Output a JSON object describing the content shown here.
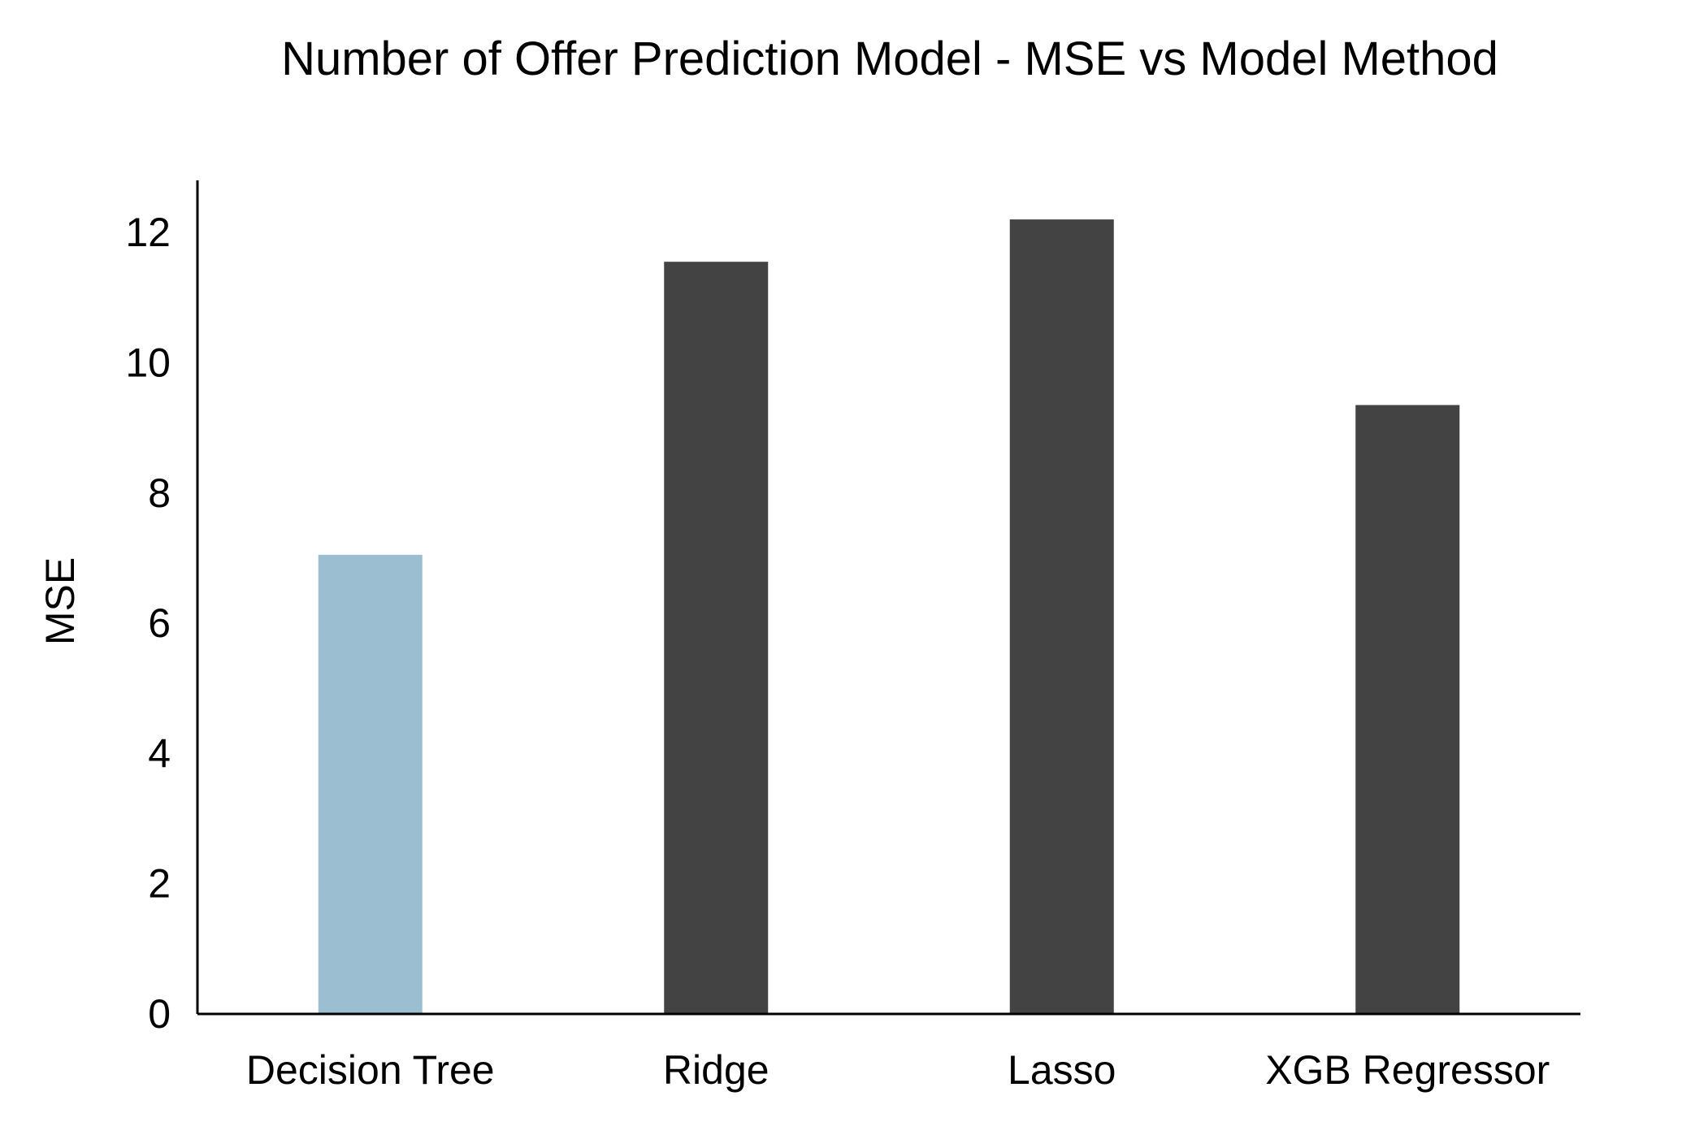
{
  "chart_data": {
    "type": "bar",
    "title": "Number of Offer Prediction Model - MSE vs Model Method",
    "xlabel": "",
    "ylabel": "MSE",
    "categories": [
      "Decision Tree",
      "Ridge",
      "Lasso",
      "XGB Regressor"
    ],
    "values": [
      7.05,
      11.55,
      12.2,
      9.35
    ],
    "ylim": [
      0,
      12.8
    ],
    "yticks": [
      0,
      2,
      4,
      6,
      8,
      10,
      12
    ],
    "grid": false,
    "legend": "none",
    "colors": {
      "highlight": "#9bbfd0",
      "default": "#434343",
      "axis": "#000000"
    },
    "highlight_index": 0
  }
}
